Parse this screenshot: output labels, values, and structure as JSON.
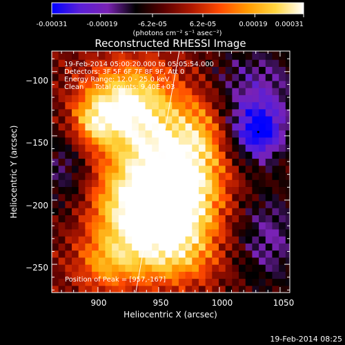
{
  "colorbar": {
    "tick_labels": [
      "-0.00031",
      "-0.00019",
      "-6.2e-05",
      "6.2e-05",
      "0.00019",
      "0.00031"
    ],
    "tick_values": [
      -0.00031,
      -0.00019,
      -6.2e-05,
      6.2e-05,
      0.00019,
      0.00031
    ],
    "range": [
      -0.00031,
      0.00031
    ],
    "units_label": "(photons cm⁻² s⁻¹ asec⁻²)",
    "colors": [
      "#0000ff",
      "#5a1fd8",
      "#7a22b4",
      "#000000",
      "#5a0000",
      "#b01800",
      "#ff4a00",
      "#ff9a00",
      "#ffd640",
      "#ffffff"
    ]
  },
  "chart_data": {
    "type": "heatmap",
    "title": "Reconstructed RHESSI Image",
    "xlabel": "Heliocentric X (arcsec)",
    "ylabel": "Heliocentric Y (arcsec)",
    "xlim": [
      862,
      1058
    ],
    "ylim": [
      -272,
      -84
    ],
    "xticks": [
      900,
      950,
      1000,
      1050
    ],
    "yticks": [
      -100,
      -150,
      -200,
      -250
    ],
    "xtick_labels": [
      "900",
      "950",
      "1000",
      "1050"
    ],
    "ytick_labels": [
      "−100",
      "−150",
      "−200",
      "−250"
    ],
    "info_lines": [
      "19-Feb-2014 05:00:20.000 to 05:05:54.000",
      "Detectors: 3F 5F 6F 7F 8F 9F, Att 0",
      "Energy Range: 12.0 - 25.0 keV",
      "Clean     Total counts: 9.40E+03"
    ],
    "peak_label": "Position of Peak = [957,-167]",
    "peak_position": [
      957,
      -167
    ],
    "limb_line": {
      "x": [
        930,
        967
      ],
      "y": [
        -278,
        -84
      ]
    },
    "blobs": [
      {
        "x": 950,
        "y": -170,
        "sx": 32,
        "sy": 40,
        "a": 1.0
      },
      {
        "x": 920,
        "y": -122,
        "sx": 24,
        "sy": 20,
        "a": 0.75
      },
      {
        "x": 895,
        "y": -140,
        "sx": 14,
        "sy": 14,
        "a": 0.6
      },
      {
        "x": 930,
        "y": -210,
        "sx": 28,
        "sy": 22,
        "a": 0.7
      },
      {
        "x": 975,
        "y": -205,
        "sx": 22,
        "sy": 26,
        "a": 0.6
      },
      {
        "x": 955,
        "y": -245,
        "sx": 30,
        "sy": 16,
        "a": 0.55
      },
      {
        "x": 905,
        "y": -250,
        "sx": 18,
        "sy": 16,
        "a": 0.45
      },
      {
        "x": 985,
        "y": -150,
        "sx": 14,
        "sy": 22,
        "a": 0.35
      },
      {
        "x": 1032,
        "y": -147,
        "sx": 16,
        "sy": 16,
        "a": -0.9
      },
      {
        "x": 1030,
        "y": -110,
        "sx": 30,
        "sy": 24,
        "a": -0.45
      },
      {
        "x": 875,
        "y": -175,
        "sx": 16,
        "sy": 30,
        "a": -0.4
      },
      {
        "x": 1040,
        "y": -230,
        "sx": 22,
        "sy": 30,
        "a": -0.45
      }
    ]
  },
  "footer": {
    "timestamp": "19-Feb-2014 08:25"
  }
}
